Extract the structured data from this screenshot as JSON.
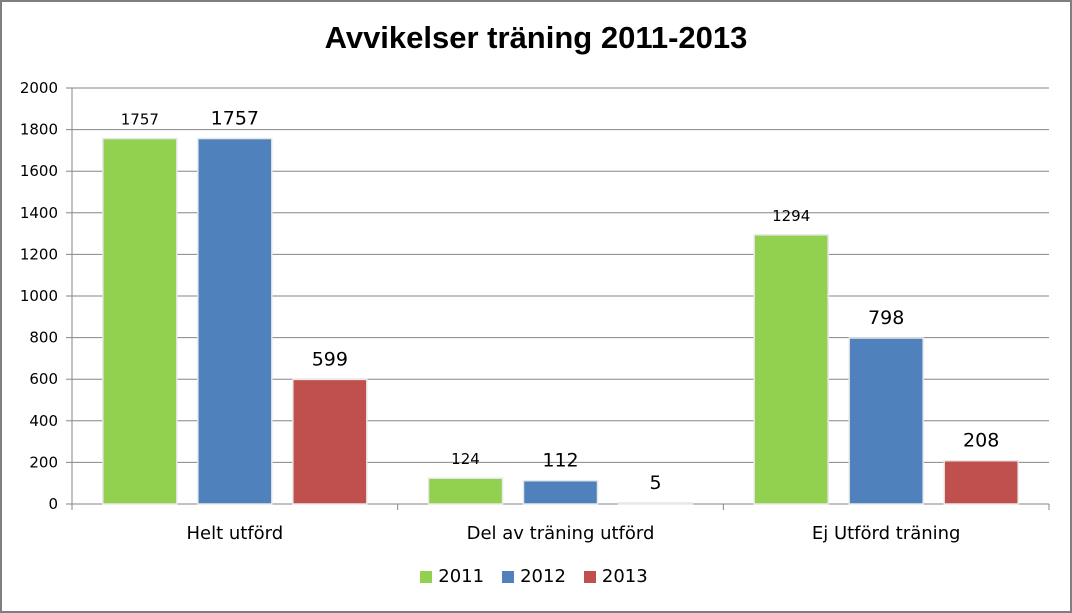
{
  "chart_data": {
    "type": "bar",
    "title": "Avvikelser träning 2011-2013",
    "categories": [
      "Helt utförd",
      "Del av träning utförd",
      "Ej Utförd träning"
    ],
    "series": [
      {
        "name": "2011",
        "color": "#92d050",
        "values": [
          1757,
          124,
          1294
        ]
      },
      {
        "name": "2012",
        "color": "#4f81bd",
        "values": [
          1757,
          112,
          798
        ]
      },
      {
        "name": "2013",
        "color": "#c0504d",
        "values": [
          599,
          5,
          208
        ]
      }
    ],
    "ylim": [
      0,
      2000
    ],
    "yticks": [
      0,
      200,
      400,
      600,
      800,
      1000,
      1200,
      1400,
      1600,
      1800,
      2000
    ],
    "grid": true,
    "legend_position": "bottom"
  }
}
